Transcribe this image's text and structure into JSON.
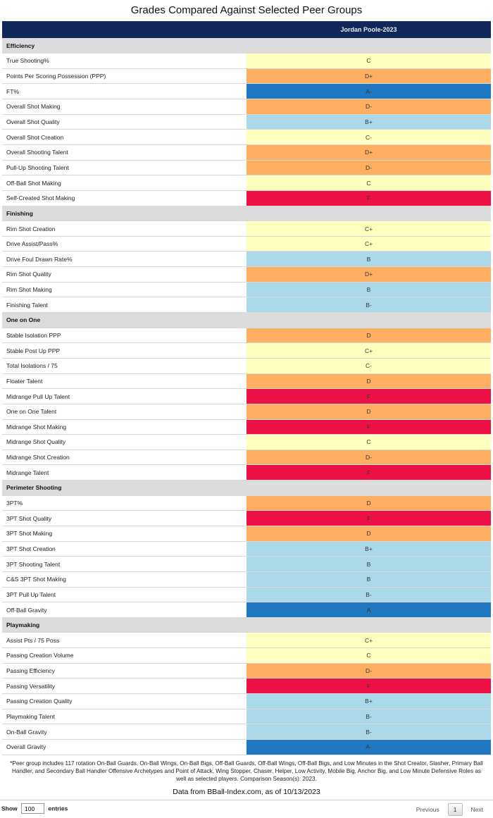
{
  "title": "Grades Compared Against Selected Peer Groups",
  "column_header": "Jordan Poole-2023",
  "colors": {
    "header_bg": "#12285a",
    "section_bg": "#dcdcdc",
    "yellow": "#ffffc0",
    "orange": "#fdae61",
    "red": "#ee1146",
    "light_blue": "#abd9e9",
    "blue": "#1f78c1"
  },
  "sections": [
    {
      "name": "Efficiency",
      "rows": [
        {
          "metric": "True Shooting%",
          "grade": "C"
        },
        {
          "metric": "Points Per Scoring Possession (PPP)",
          "grade": "D+"
        },
        {
          "metric": "FT%",
          "grade": "A-"
        },
        {
          "metric": "Overall Shot Making",
          "grade": "D-"
        },
        {
          "metric": "Overall Shot Quality",
          "grade": "B+"
        },
        {
          "metric": "Overall Shot Creation",
          "grade": "C-"
        },
        {
          "metric": "Overall Shooting Talent",
          "grade": "D+"
        },
        {
          "metric": "Pull-Up Shooting Talent",
          "grade": "D-"
        },
        {
          "metric": "Off-Ball Shot Making",
          "grade": "C"
        },
        {
          "metric": "Self-Created Shot Making",
          "grade": "F"
        }
      ]
    },
    {
      "name": "Finishing",
      "rows": [
        {
          "metric": "Rim Shot Creation",
          "grade": "C+"
        },
        {
          "metric": "Drive Assist/Pass%",
          "grade": "C+"
        },
        {
          "metric": "Drive Foul Drawn Rate%",
          "grade": "B"
        },
        {
          "metric": "Rim Shot Quality",
          "grade": "D+"
        },
        {
          "metric": "Rim Shot Making",
          "grade": "B"
        },
        {
          "metric": "Finishing Talent",
          "grade": "B-"
        }
      ]
    },
    {
      "name": "One on One",
      "rows": [
        {
          "metric": "Stable Isolation PPP",
          "grade": "D"
        },
        {
          "metric": "Stable Post Up PPP",
          "grade": "C+"
        },
        {
          "metric": "Total Isolations / 75",
          "grade": "C-"
        },
        {
          "metric": "Floater Talent",
          "grade": "D"
        },
        {
          "metric": "Midrange Pull Up Talent",
          "grade": "F"
        },
        {
          "metric": "One on One Talent",
          "grade": "D"
        },
        {
          "metric": "Midrange Shot Making",
          "grade": "F"
        },
        {
          "metric": "Midrange Shot Quality",
          "grade": "C"
        },
        {
          "metric": "Midrange Shot Creation",
          "grade": "D-"
        },
        {
          "metric": "Midrange Talent",
          "grade": "F"
        }
      ]
    },
    {
      "name": "Perimeter Shooting",
      "rows": [
        {
          "metric": "3PT%",
          "grade": "D"
        },
        {
          "metric": "3PT Shot Quality",
          "grade": "F"
        },
        {
          "metric": "3PT Shot Making",
          "grade": "D"
        },
        {
          "metric": "3PT Shot Creation",
          "grade": "B+"
        },
        {
          "metric": "3PT Shooting Talent",
          "grade": "B"
        },
        {
          "metric": "C&S 3PT Shot Making",
          "grade": "B"
        },
        {
          "metric": "3PT Pull Up Talent",
          "grade": "B-"
        },
        {
          "metric": "Off-Ball Gravity",
          "grade": "A"
        }
      ]
    },
    {
      "name": "Playmaking",
      "rows": [
        {
          "metric": "Assist Pts / 75 Poss",
          "grade": "C+"
        },
        {
          "metric": "Passing Creation Volume",
          "grade": "C"
        },
        {
          "metric": "Passing Efficiency",
          "grade": "D-"
        },
        {
          "metric": "Passing Versatility",
          "grade": "F"
        },
        {
          "metric": "Passing Creation Quality",
          "grade": "B+"
        },
        {
          "metric": "Playmaking Talent",
          "grade": "B-"
        },
        {
          "metric": "On-Ball Gravity",
          "grade": "B-"
        },
        {
          "metric": "Overall Gravity",
          "grade": "A-"
        }
      ]
    }
  ],
  "footnote": "*Peer group includes 117 rotation On-Ball Guards, On-Ball Wings, On-Ball Bigs, Off-Ball Guards, Off-Ball Wings, Off-Ball Bigs, and Low Minutes in the Shot Creator, Slasher, Primary Ball Handler, and Secondary Ball Handler Offensive Archetypes and Point of Attack, Wing Stopper, Chaser, Helper, Low Activity, Mobile Big, Anchor Big, and Low Minute Defensive Roles as well as selected players. Comparison Season(s): 2023.",
  "source": "Data from BBall-Index.com, as of 10/13/2023",
  "controls": {
    "show_label": "Show",
    "entries_value": "100",
    "entries_label": "entries",
    "previous_label": "Previous",
    "current_page": "1",
    "next_label": "Next"
  }
}
